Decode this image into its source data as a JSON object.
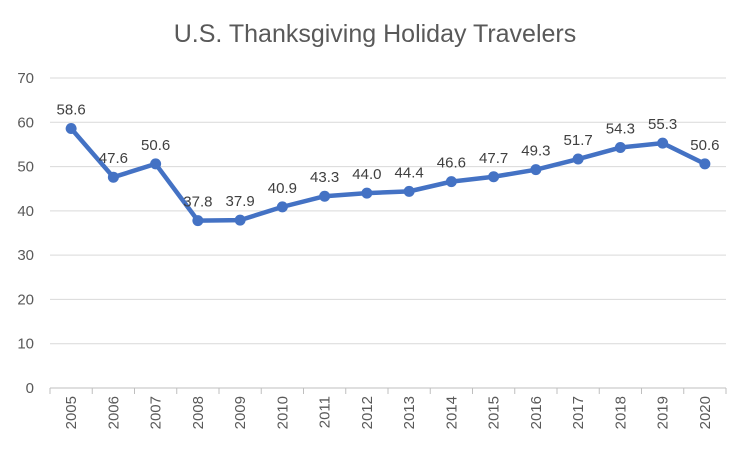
{
  "chart_data": {
    "type": "line",
    "title": "U.S. Thanksgiving Holiday Travelers",
    "xlabel": "",
    "ylabel": "",
    "x": [
      "2005",
      "2006",
      "2007",
      "2008",
      "2009",
      "2010",
      "2011",
      "2012",
      "2013",
      "2014",
      "2015",
      "2016",
      "2017",
      "2018",
      "2019",
      "2020"
    ],
    "series": [
      {
        "values": [
          58.6,
          47.6,
          50.6,
          37.8,
          37.9,
          40.9,
          43.3,
          44.0,
          44.4,
          46.6,
          47.7,
          49.3,
          51.7,
          54.3,
          55.3,
          50.6
        ],
        "labels": [
          "58.6",
          "47.6",
          "50.6",
          "37.8",
          "37.9",
          "40.9",
          "43.3",
          "44.0",
          "44.4",
          "46.6",
          "47.7",
          "49.3",
          "51.7",
          "54.3",
          "55.3",
          "50.6"
        ],
        "color": "#4472C4"
      }
    ],
    "ylim": [
      0,
      70
    ],
    "yticks": [
      "0",
      "10",
      "20",
      "30",
      "40",
      "50",
      "60",
      "70"
    ],
    "grid": true,
    "legend": "none"
  }
}
